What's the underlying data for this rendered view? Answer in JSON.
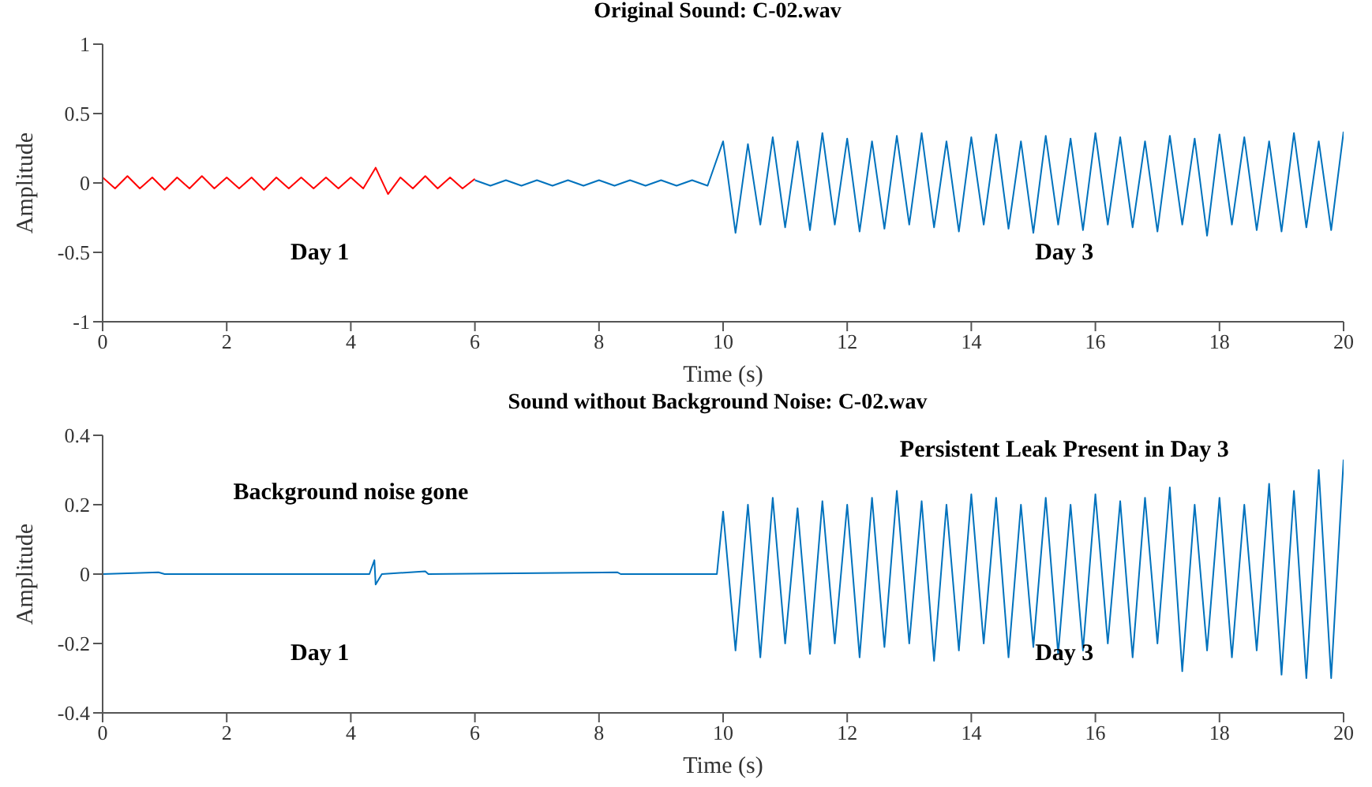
{
  "chart_data": [
    {
      "type": "line",
      "title": "Original Sound: C-02.wav",
      "xlabel": "Time (s)",
      "ylabel": "Amplitude",
      "xlim": [
        0,
        20
      ],
      "xticks": [
        0,
        2,
        4,
        6,
        8,
        10,
        12,
        14,
        16,
        18,
        20
      ],
      "ylim": [
        -1,
        1
      ],
      "yticks": [
        -1,
        -0.5,
        0,
        0.5,
        1
      ],
      "series": [
        {
          "color": "#ff0000",
          "x": [
            0,
            0.2,
            0.4,
            0.6,
            0.8,
            1,
            1.2,
            1.4,
            1.6,
            1.8,
            2,
            2.2,
            2.4,
            2.6,
            2.8,
            3,
            3.2,
            3.4,
            3.6,
            3.8,
            4,
            4.2,
            4.4,
            4.6,
            4.8,
            5,
            5.2,
            5.4,
            5.6,
            5.8,
            6
          ],
          "values": [
            0.04,
            -0.04,
            0.05,
            -0.04,
            0.04,
            -0.05,
            0.04,
            -0.04,
            0.05,
            -0.04,
            0.04,
            -0.04,
            0.04,
            -0.05,
            0.04,
            -0.04,
            0.04,
            -0.04,
            0.04,
            -0.04,
            0.04,
            -0.04,
            0.11,
            -0.08,
            0.04,
            -0.04,
            0.05,
            -0.04,
            0.04,
            -0.04,
            0.03
          ]
        },
        {
          "color": "#0072bd",
          "x": [
            6,
            6.25,
            6.5,
            6.75,
            7,
            7.25,
            7.5,
            7.75,
            8,
            8.25,
            8.5,
            8.75,
            9,
            9.25,
            9.5,
            9.75,
            10,
            10.2,
            10.4,
            10.6,
            10.8,
            11,
            11.2,
            11.4,
            11.6,
            11.8,
            12,
            12.2,
            12.4,
            12.6,
            12.8,
            13,
            13.2,
            13.4,
            13.6,
            13.8,
            14,
            14.2,
            14.4,
            14.6,
            14.8,
            15,
            15.2,
            15.4,
            15.6,
            15.8,
            16,
            16.2,
            16.4,
            16.6,
            16.8,
            17,
            17.2,
            17.4,
            17.6,
            17.8,
            18,
            18.2,
            18.4,
            18.6,
            18.8,
            19,
            19.2,
            19.4,
            19.6,
            19.8,
            20
          ],
          "values": [
            0.02,
            -0.02,
            0.02,
            -0.02,
            0.02,
            -0.02,
            0.02,
            -0.02,
            0.02,
            -0.02,
            0.02,
            -0.02,
            0.02,
            -0.02,
            0.02,
            -0.02,
            0.3,
            -0.36,
            0.28,
            -0.3,
            0.33,
            -0.32,
            0.3,
            -0.34,
            0.36,
            -0.3,
            0.32,
            -0.35,
            0.3,
            -0.33,
            0.34,
            -0.3,
            0.36,
            -0.32,
            0.3,
            -0.35,
            0.33,
            -0.3,
            0.35,
            -0.33,
            0.3,
            -0.36,
            0.34,
            -0.3,
            0.32,
            -0.34,
            0.36,
            -0.3,
            0.33,
            -0.32,
            0.3,
            -0.35,
            0.34,
            -0.3,
            0.32,
            -0.38,
            0.35,
            -0.3,
            0.33,
            -0.34,
            0.3,
            -0.35,
            0.36,
            -0.32,
            0.3,
            -0.34,
            0.37
          ]
        }
      ],
      "annotations": [
        "Day 1",
        "Day 3"
      ]
    },
    {
      "type": "line",
      "title": "Sound without Background Noise: C-02.wav",
      "xlabel": "Time (s)",
      "ylabel": "Amplitude",
      "xlim": [
        0,
        20
      ],
      "xticks": [
        0,
        2,
        4,
        6,
        8,
        10,
        12,
        14,
        16,
        18,
        20
      ],
      "ylim": [
        -0.4,
        0.4
      ],
      "yticks": [
        -0.4,
        -0.2,
        0,
        0.2,
        0.4
      ],
      "series": [
        {
          "color": "#0072bd",
          "x": [
            0,
            0.9,
            1,
            4.3,
            4.38,
            4.4,
            4.5,
            5.2,
            5.25,
            8.3,
            8.35,
            9.9,
            10,
            10.2,
            10.4,
            10.6,
            10.8,
            11,
            11.2,
            11.4,
            11.6,
            11.8,
            12,
            12.2,
            12.4,
            12.6,
            12.8,
            13,
            13.2,
            13.4,
            13.6,
            13.8,
            14,
            14.2,
            14.4,
            14.6,
            14.8,
            15,
            15.2,
            15.4,
            15.6,
            15.8,
            16,
            16.2,
            16.4,
            16.6,
            16.8,
            17,
            17.2,
            17.4,
            17.6,
            17.8,
            18,
            18.2,
            18.4,
            18.6,
            18.8,
            19,
            19.2,
            19.4,
            19.6,
            19.8,
            20
          ],
          "values": [
            0,
            0.005,
            0,
            0,
            0.04,
            -0.03,
            0,
            0.008,
            0,
            0.005,
            0,
            0,
            0.18,
            -0.22,
            0.2,
            -0.24,
            0.22,
            -0.2,
            0.19,
            -0.23,
            0.21,
            -0.2,
            0.2,
            -0.24,
            0.22,
            -0.21,
            0.24,
            -0.2,
            0.21,
            -0.25,
            0.2,
            -0.22,
            0.23,
            -0.2,
            0.22,
            -0.24,
            0.2,
            -0.21,
            0.22,
            -0.23,
            0.2,
            -0.22,
            0.23,
            -0.2,
            0.21,
            -0.24,
            0.22,
            -0.2,
            0.25,
            -0.28,
            0.2,
            -0.22,
            0.22,
            -0.24,
            0.2,
            -0.22,
            0.26,
            -0.29,
            0.24,
            -0.3,
            0.3,
            -0.3,
            0.33
          ]
        }
      ],
      "annotations": [
        "Background noise gone",
        "Persistent Leak Present in Day 3",
        "Day 1",
        "Day 3"
      ]
    }
  ]
}
